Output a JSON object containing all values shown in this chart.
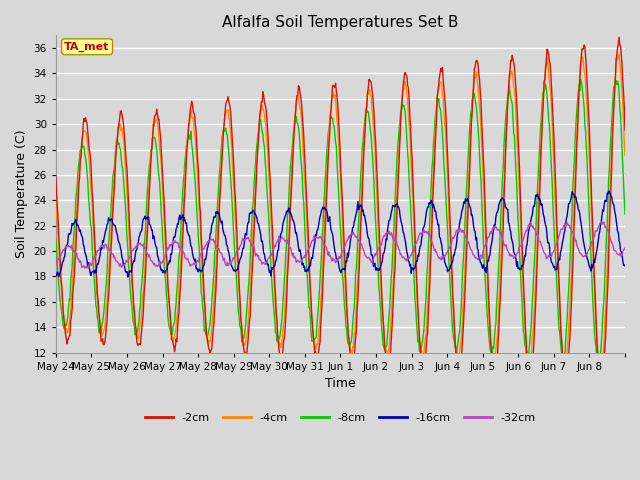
{
  "title": "Alfalfa Soil Temperatures Set B",
  "xlabel": "Time",
  "ylabel": "Soil Temperature (C)",
  "ylim": [
    12,
    37
  ],
  "yticks": [
    12,
    14,
    16,
    18,
    20,
    22,
    24,
    26,
    28,
    30,
    32,
    34,
    36
  ],
  "bg_color": "#d8d8d8",
  "plot_bg_color": "#d8d8d8",
  "grid_color": "#ffffff",
  "colors": {
    "-2cm": "#dd1100",
    "-4cm": "#ff8800",
    "-8cm": "#00cc00",
    "-16cm": "#0000bb",
    "-32cm": "#bb44bb"
  },
  "annotation_label": "TA_met",
  "annotation_color": "#cc0000",
  "annotation_bg": "#ffff99",
  "days": [
    "May 24",
    "May 25",
    "May 26",
    "May 27",
    "May 28",
    "May 29",
    "May 30",
    "May 31",
    "Jun 1",
    "Jun 2",
    "Jun 3",
    "Jun 4",
    "Jun 5",
    "Jun 6",
    "Jun 7",
    "Jun 8"
  ],
  "num_days": 16,
  "figsize": [
    6.4,
    4.8
  ],
  "dpi": 100
}
